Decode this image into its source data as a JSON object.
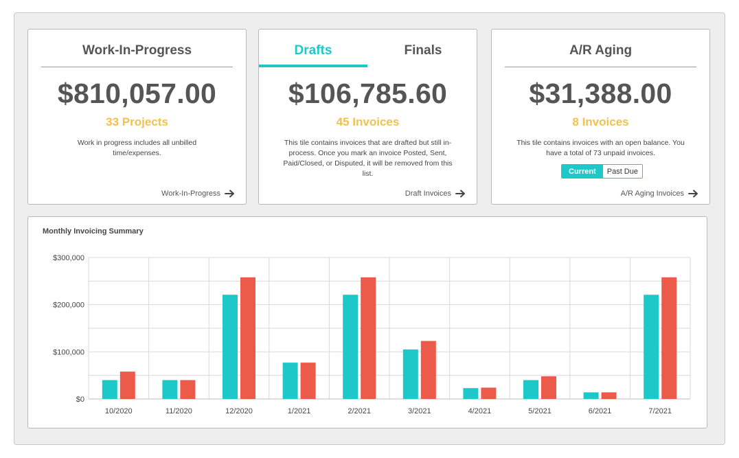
{
  "wip": {
    "title": "Work-In-Progress",
    "amount": "$810,057.00",
    "count": "33 Projects",
    "description": "Work in progress includes all unbilled time/expenses.",
    "link": "Work-In-Progress"
  },
  "drafts": {
    "tabs": [
      {
        "label": "Drafts",
        "active": true
      },
      {
        "label": "Finals",
        "active": false
      }
    ],
    "amount": "$106,785.60",
    "count": "45 Invoices",
    "description": "This tile contains invoices that are drafted but still in-process. Once you mark an invoice Posted, Sent, Paid/Closed, or Disputed, it will be removed from this list.",
    "link": "Draft Invoices"
  },
  "ar": {
    "title": "A/R Aging",
    "amount": "$31,388.00",
    "count": "8 Invoices",
    "description": "This tile contains invoices with an open balance. You have a total of 73 unpaid invoices.",
    "toggle": {
      "current": "Current",
      "past_due": "Past Due",
      "selected": "Current"
    },
    "link": "A/R Aging Invoices"
  },
  "colors": {
    "accent_teal": "#1ec8c8",
    "accent_red": "#ec5a4a",
    "count_yellow": "#f2c14e"
  },
  "icons": {
    "link_arrow": "arrow-right-icon"
  },
  "chart": {
    "title": "Monthly Invoicing Summary"
  },
  "chart_data": {
    "type": "bar",
    "title": "Monthly Invoicing Summary",
    "categories": [
      "10/2020",
      "11/2020",
      "12/2020",
      "1/2021",
      "2/2021",
      "3/2021",
      "4/2021",
      "5/2021",
      "6/2021",
      "7/2021"
    ],
    "series": [
      {
        "color": "#1ec8c8",
        "values": [
          40000,
          40000,
          221000,
          77000,
          221000,
          105000,
          23000,
          40000,
          14000,
          221000
        ]
      },
      {
        "color": "#ec5a4a",
        "values": [
          58000,
          40000,
          258000,
          77000,
          258000,
          123000,
          24000,
          48000,
          14000,
          258000
        ]
      }
    ],
    "ylim": [
      0,
      300000
    ],
    "yticks": [
      "$0",
      "$100,000",
      "$200,000",
      "$300,000"
    ],
    "ytick_values": [
      0,
      100000,
      200000,
      300000
    ],
    "grid": true
  }
}
